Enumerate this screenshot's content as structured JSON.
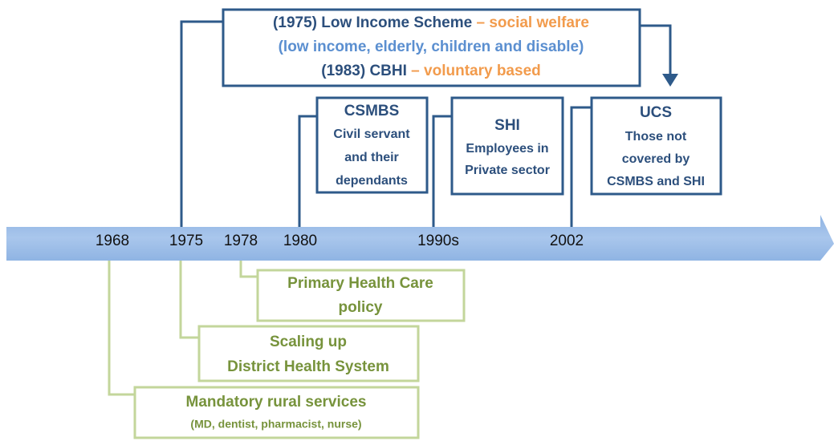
{
  "years": [
    "1968",
    "1975",
    "1978",
    "1980",
    "1990s",
    "2002"
  ],
  "top_boxes": [
    {
      "lines": [
        [
          "(1975) Low Income Scheme",
          " – social welfare"
        ],
        [
          "(low income, elderly, children and disable)"
        ],
        [
          "(1983) CBHI",
          " – voluntary based"
        ]
      ]
    },
    {
      "lines": [
        "CSMBS",
        "Civil servant",
        "and their",
        "dependants"
      ]
    },
    {
      "lines": [
        "SHI",
        "Employees in",
        "Private sector"
      ]
    },
    {
      "lines": [
        "UCS",
        "Those not",
        "covered by",
        "CSMBS and SHI"
      ]
    }
  ],
  "bottom_boxes": [
    {
      "lines": [
        "Primary Health Care",
        "policy"
      ]
    },
    {
      "lines": [
        "Scaling up",
        "District Health System"
      ]
    },
    {
      "lines": [
        "Mandatory rural services",
        "(MD, dentist, pharmacist, nurse)"
      ]
    }
  ]
}
